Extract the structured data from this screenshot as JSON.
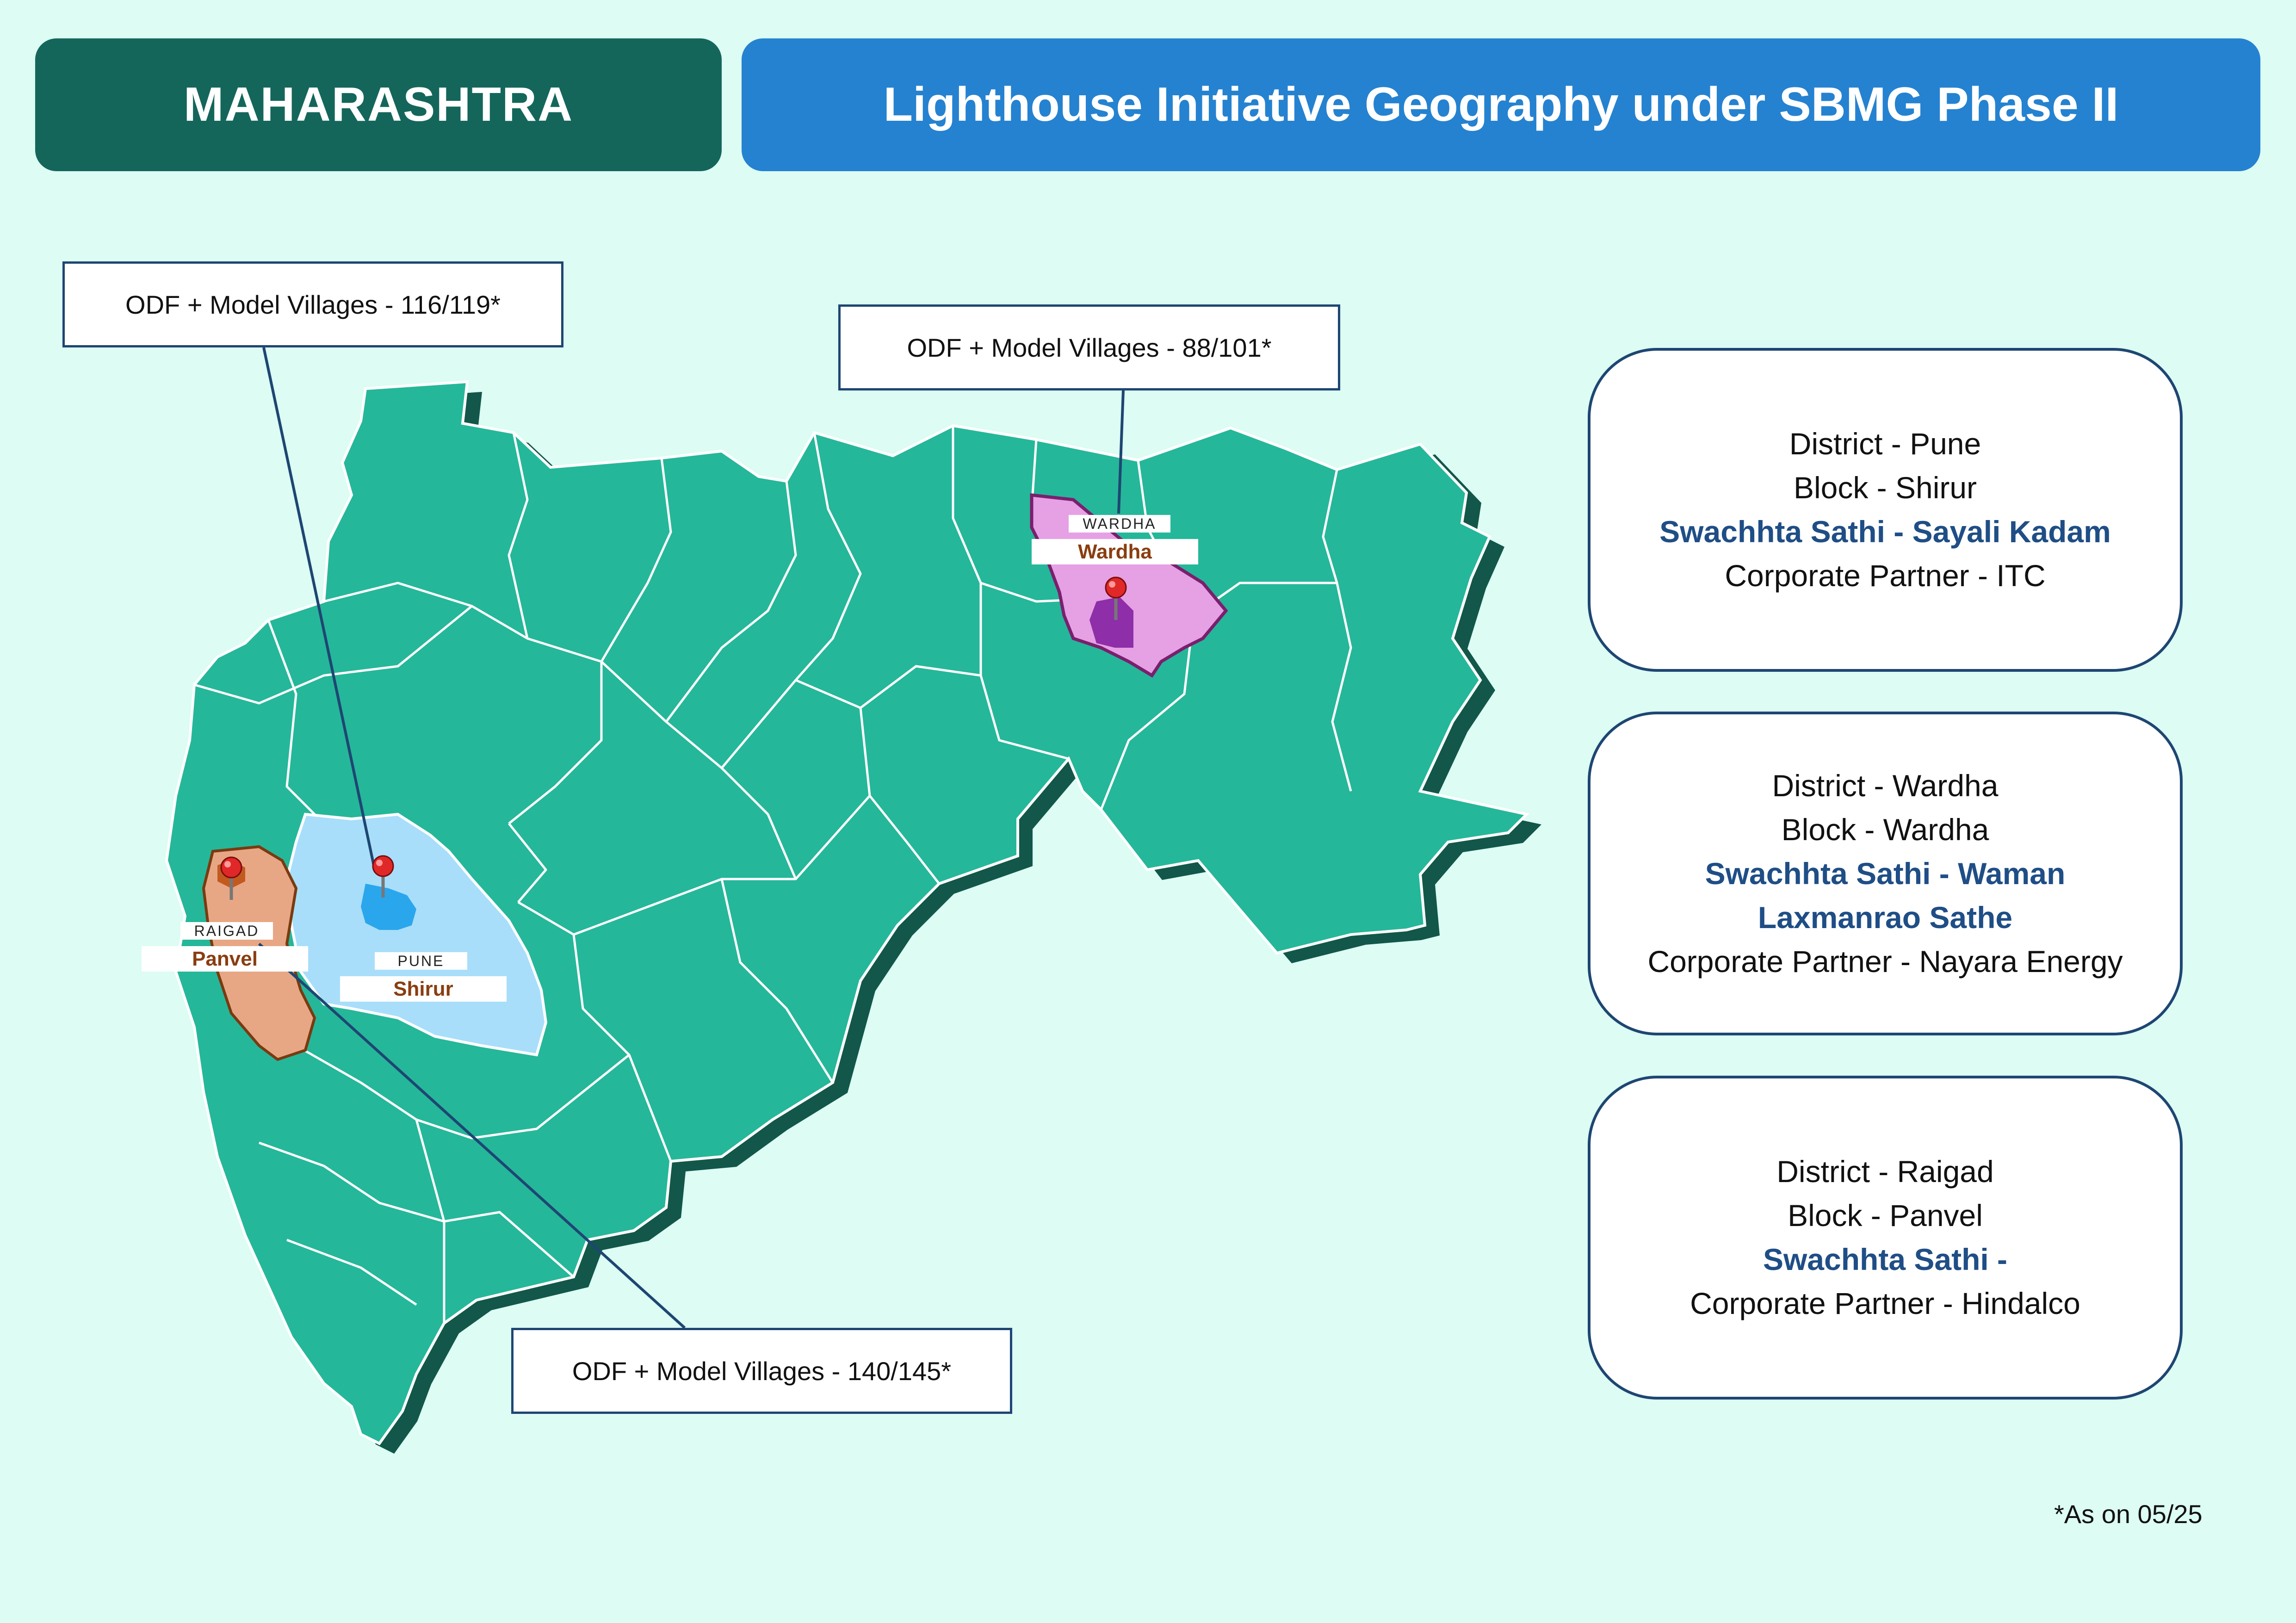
{
  "header": {
    "state": "MAHARASHTRA",
    "title": "Lighthouse Initiative Geography under SBMG Phase II"
  },
  "map_labels": {
    "raigad": {
      "district": "RAIGAD",
      "block": "Panvel"
    },
    "pune": {
      "district": "PUNE",
      "block": "Shirur"
    },
    "wardha": {
      "district": "WARDHA",
      "block": "Wardha"
    }
  },
  "stats": {
    "pune": "ODF + Model Villages - 116/119*",
    "wardha": "ODF + Model Villages - 88/101*",
    "raigad": "ODF + Model Villages - 140/145*"
  },
  "cards": [
    {
      "district": "District - Pune",
      "block": "Block - Shirur",
      "sathi": "Swachhta Sathi - Sayali Kadam",
      "sathi2": "",
      "partner": "Corporate Partner - ITC"
    },
    {
      "district": "District - Wardha",
      "block": "Block - Wardha",
      "sathi": "Swachhta Sathi - Waman",
      "sathi2": "Laxmanrao Sathe",
      "partner": "Corporate Partner - Nayara Energy"
    },
    {
      "district": "District - Raigad",
      "block": "Block - Panvel",
      "sathi": "Swachhta Sathi -",
      "sathi2": "",
      "partner": "Corporate Partner - Hindalco"
    }
  ],
  "footnote": "*As on 05/25",
  "colors": {
    "background": "#dcfcf4",
    "state_fill": "#25b79a",
    "state_shadow": "#12574a",
    "pune_fill": "#a8defa",
    "raigad_fill": "#e8a784",
    "wardha_fill": "#e6a0e4",
    "header_state": "#14665b",
    "header_title": "#2582d0",
    "card_border": "#1e4672",
    "sathi_text": "#1f4e86",
    "block_text": "#8a3d10"
  },
  "icons": [
    "map-pin-icon"
  ]
}
